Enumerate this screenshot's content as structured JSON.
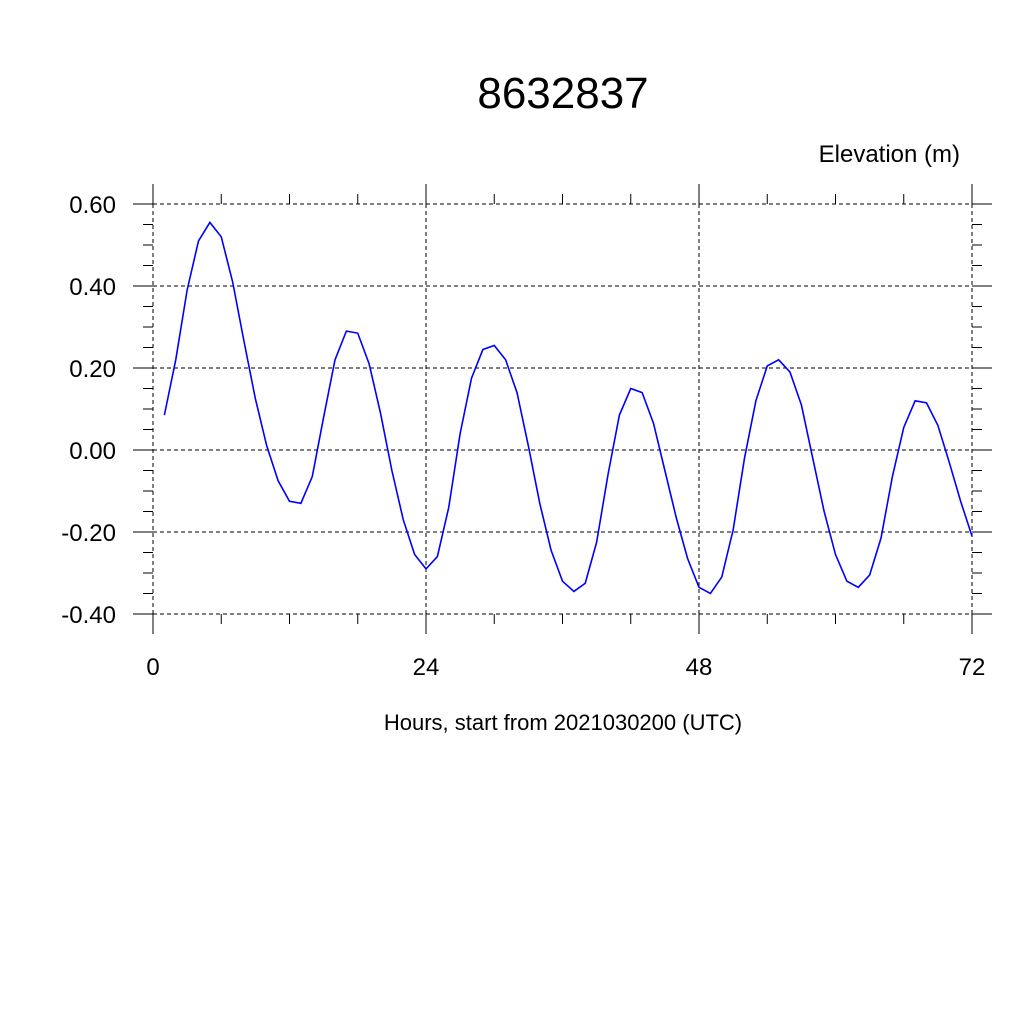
{
  "chart_data": {
    "type": "line",
    "title": "8632837",
    "ylabel": "Elevation (m)",
    "xlabel": "Hours, start from 2021030200 (UTC)",
    "xlim": [
      0,
      72
    ],
    "ylim": [
      -0.4,
      0.6
    ],
    "xticks": [
      0,
      24,
      48,
      72
    ],
    "xtick_labels": [
      "0",
      "24",
      "48",
      "72"
    ],
    "yticks": [
      -0.4,
      -0.2,
      0.0,
      0.2,
      0.4,
      0.6
    ],
    "ytick_labels": [
      "-0.40",
      "-0.20",
      "0.00",
      "0.20",
      "0.40",
      "0.60"
    ],
    "grid": true,
    "line_color": "#0000ff",
    "series": [
      {
        "x": [
          1,
          2,
          3,
          4,
          5,
          6,
          7,
          8,
          9,
          10,
          11,
          12,
          13,
          14,
          15,
          16,
          17,
          18,
          19,
          20,
          21,
          22,
          23,
          24,
          25,
          26,
          27,
          28,
          29,
          30,
          31,
          32,
          33,
          34,
          35,
          36,
          37,
          38,
          39,
          40,
          41,
          42,
          43,
          44,
          45,
          46,
          47,
          48,
          49,
          50,
          51,
          52,
          53,
          54,
          55,
          56,
          57,
          58,
          59,
          60,
          61,
          62,
          63,
          64,
          65,
          66,
          67,
          68,
          69,
          70,
          71,
          72
        ],
        "values": [
          0.085,
          0.22,
          0.39,
          0.51,
          0.555,
          0.52,
          0.41,
          0.265,
          0.125,
          0.01,
          -0.075,
          -0.125,
          -0.13,
          -0.065,
          0.08,
          0.22,
          0.29,
          0.285,
          0.21,
          0.09,
          -0.05,
          -0.17,
          -0.255,
          -0.29,
          -0.26,
          -0.14,
          0.04,
          0.175,
          0.245,
          0.255,
          0.22,
          0.14,
          0.01,
          -0.13,
          -0.245,
          -0.32,
          -0.345,
          -0.325,
          -0.225,
          -0.06,
          0.085,
          0.15,
          0.14,
          0.065,
          -0.05,
          -0.165,
          -0.265,
          -0.335,
          -0.35,
          -0.31,
          -0.195,
          -0.02,
          0.12,
          0.205,
          0.22,
          0.19,
          0.11,
          -0.02,
          -0.15,
          -0.255,
          -0.32,
          -0.335,
          -0.305,
          -0.215,
          -0.065,
          0.055,
          0.12,
          0.115,
          0.06,
          -0.03,
          -0.125,
          -0.21
        ]
      }
    ]
  }
}
